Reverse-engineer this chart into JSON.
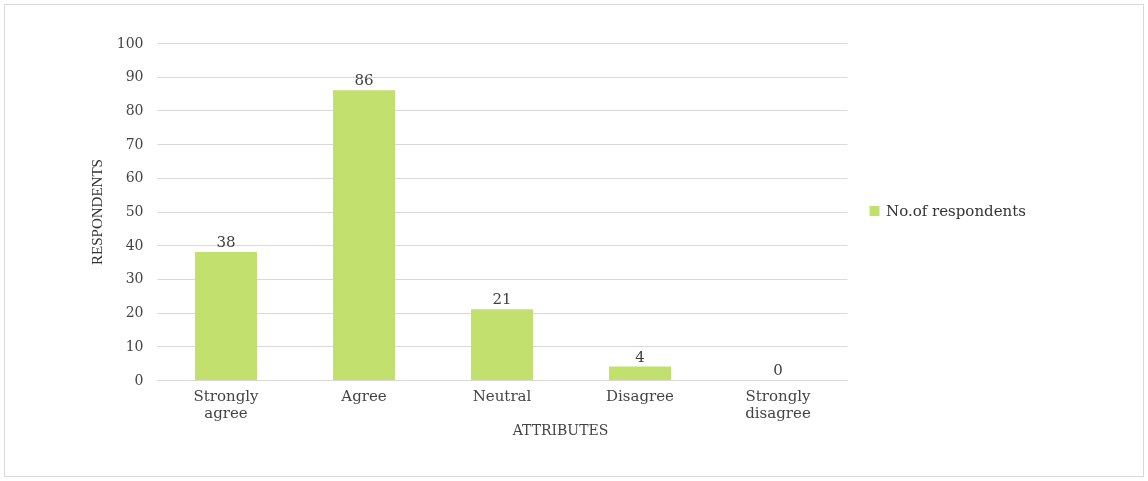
{
  "chart_data": {
    "type": "bar",
    "xlabel": "ATTRIBUTES",
    "ylabel": "RESPONDENTS",
    "categories": [
      "Strongly agree",
      "Agree",
      "Neutral",
      "Disagree",
      "Strongly disagree"
    ],
    "series": [
      {
        "name": "No.of respondents",
        "color": "#c2e06e",
        "values": [
          38,
          86,
          21,
          4,
          0
        ]
      }
    ],
    "ylim": [
      0,
      100
    ],
    "yticks": [
      0,
      10,
      20,
      30,
      40,
      50,
      60,
      70,
      80,
      90,
      100
    ],
    "grid": "y",
    "legend": "right",
    "data_labels": true
  }
}
